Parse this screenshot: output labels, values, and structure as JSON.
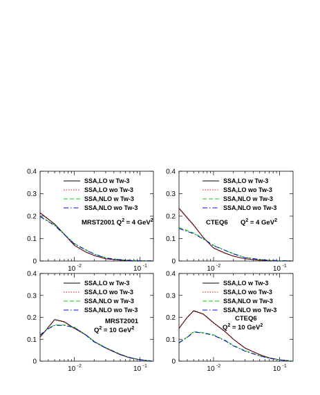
{
  "chart_data": [
    {
      "type": "line",
      "x_scale": "log",
      "xlim": [
        0.003,
        0.16
      ],
      "ylim": [
        0,
        0.4
      ],
      "xticks": [
        {
          "value": 0.01,
          "label": "10"
        },
        {
          "value": 0.1,
          "label": "10"
        }
      ],
      "xtick_exponent": "-2",
      "xtick_exponents": [
        "-2",
        "-1"
      ],
      "yticks": [
        {
          "value": 0,
          "label": "0"
        },
        {
          "value": 0.1,
          "label": "0.1"
        },
        {
          "value": 0.2,
          "label": "0.2"
        },
        {
          "value": 0.3,
          "label": "0.3"
        },
        {
          "value": 0.4,
          "label": "0.4"
        }
      ],
      "annotation": {
        "text": "MRST2001 Q",
        "sup": "2",
        "rest": " = 4 GeV",
        "sup2": "2"
      },
      "legend_position": "top-right",
      "series": [
        {
          "name": "SSA,LO w Tw-3",
          "color": "#000000",
          "dash": "solid",
          "x": [
            0.003,
            0.005,
            0.007,
            0.01,
            0.015,
            0.02,
            0.03,
            0.05,
            0.07,
            0.1,
            0.15
          ],
          "y": [
            0.215,
            0.165,
            0.12,
            0.07,
            0.04,
            0.025,
            0.01,
            0.004,
            0.002,
            0.001,
            0.0005
          ]
        },
        {
          "name": "SSA,LO wo Tw-3",
          "color": "#e00000",
          "dash": "dot",
          "x": [
            0.003,
            0.005,
            0.007,
            0.01,
            0.015,
            0.02,
            0.03,
            0.05,
            0.07,
            0.1,
            0.15
          ],
          "y": [
            0.213,
            0.163,
            0.118,
            0.069,
            0.039,
            0.024,
            0.01,
            0.004,
            0.002,
            0.001,
            0.0005
          ]
        },
        {
          "name": "SSA,NLO w Tw-3",
          "color": "#00cc00",
          "dash": "dash",
          "x": [
            0.003,
            0.005,
            0.007,
            0.01,
            0.015,
            0.02,
            0.03,
            0.05,
            0.07,
            0.1,
            0.15
          ],
          "y": [
            0.2,
            0.16,
            0.12,
            0.078,
            0.05,
            0.032,
            0.014,
            0.006,
            0.003,
            0.0015,
            0.0005
          ]
        },
        {
          "name": "SSA,NLO wo Tw-3",
          "color": "#0000dd",
          "dash": "dashdot",
          "x": [
            0.003,
            0.005,
            0.007,
            0.01,
            0.015,
            0.02,
            0.03,
            0.05,
            0.07,
            0.1,
            0.15
          ],
          "y": [
            0.198,
            0.158,
            0.118,
            0.076,
            0.049,
            0.031,
            0.013,
            0.006,
            0.003,
            0.0015,
            0.0005
          ]
        }
      ]
    },
    {
      "type": "line",
      "x_scale": "log",
      "xlim": [
        0.003,
        0.16
      ],
      "ylim": [
        0,
        0.4
      ],
      "xticks": [
        {
          "value": 0.01,
          "label": "10"
        },
        {
          "value": 0.1,
          "label": "10"
        }
      ],
      "xtick_exponents": [
        "-2",
        "-1"
      ],
      "yticks": [
        {
          "value": 0,
          "label": "0"
        },
        {
          "value": 0.1,
          "label": "0.1"
        },
        {
          "value": 0.2,
          "label": "0.2"
        },
        {
          "value": 0.3,
          "label": "0.3"
        },
        {
          "value": 0.4,
          "label": "0.4"
        }
      ],
      "annotation": {
        "text": "CTEQ6",
        "line2": "Q",
        "sup": "2",
        "rest": " = 4 GeV",
        "sup2": "2"
      },
      "legend_position": "top-right",
      "series": [
        {
          "name": "SSA,LO w Tw-3",
          "color": "#000000",
          "dash": "solid",
          "x": [
            0.003,
            0.005,
            0.007,
            0.01,
            0.015,
            0.02,
            0.03,
            0.05,
            0.07,
            0.1,
            0.15
          ],
          "y": [
            0.235,
            0.16,
            0.105,
            0.058,
            0.035,
            0.022,
            0.01,
            0.004,
            0.002,
            0.001,
            0.0005
          ]
        },
        {
          "name": "SSA,LO wo Tw-3",
          "color": "#e00000",
          "dash": "dot",
          "x": [
            0.003,
            0.005,
            0.007,
            0.01,
            0.015,
            0.02,
            0.03,
            0.05,
            0.07,
            0.1,
            0.15
          ],
          "y": [
            0.233,
            0.158,
            0.104,
            0.057,
            0.034,
            0.021,
            0.01,
            0.004,
            0.002,
            0.001,
            0.0005
          ]
        },
        {
          "name": "SSA,NLO w Tw-3",
          "color": "#00cc00",
          "dash": "dash",
          "x": [
            0.003,
            0.005,
            0.007,
            0.01,
            0.015,
            0.02,
            0.03,
            0.05,
            0.07,
            0.1,
            0.15
          ],
          "y": [
            0.15,
            0.125,
            0.1,
            0.07,
            0.048,
            0.033,
            0.016,
            0.007,
            0.003,
            0.0015,
            0.0005
          ]
        },
        {
          "name": "SSA,NLO wo Tw-3",
          "color": "#0000dd",
          "dash": "dashdot",
          "x": [
            0.003,
            0.005,
            0.007,
            0.01,
            0.015,
            0.02,
            0.03,
            0.05,
            0.07,
            0.1,
            0.15
          ],
          "y": [
            0.145,
            0.122,
            0.098,
            0.068,
            0.047,
            0.032,
            0.015,
            0.007,
            0.003,
            0.0015,
            0.0005
          ]
        }
      ]
    },
    {
      "type": "line",
      "x_scale": "log",
      "xlim": [
        0.003,
        0.16
      ],
      "ylim": [
        0,
        0.4
      ],
      "xticks": [
        {
          "value": 0.01,
          "label": "10"
        },
        {
          "value": 0.1,
          "label": "10"
        }
      ],
      "xtick_exponents": [
        "-2",
        "-1"
      ],
      "yticks": [
        {
          "value": 0,
          "label": "0"
        },
        {
          "value": 0.1,
          "label": "0.1"
        },
        {
          "value": 0.2,
          "label": "0.2"
        },
        {
          "value": 0.3,
          "label": "0.3"
        },
        {
          "value": 0.4,
          "label": "0.4"
        }
      ],
      "annotation": {
        "text": "MRST2001",
        "line2": "Q",
        "sup": "2",
        "rest": " = 10 GeV",
        "sup2": "2"
      },
      "legend_position": "top-right",
      "series": [
        {
          "name": "SSA,LO w Tw-3",
          "color": "#000000",
          "dash": "solid",
          "x": [
            0.003,
            0.004,
            0.005,
            0.007,
            0.01,
            0.015,
            0.02,
            0.03,
            0.05,
            0.07,
            0.1,
            0.15
          ],
          "y": [
            0.11,
            0.155,
            0.19,
            0.18,
            0.15,
            0.12,
            0.09,
            0.06,
            0.03,
            0.015,
            0.006,
            0.001
          ]
        },
        {
          "name": "SSA,LO wo Tw-3",
          "color": "#e00000",
          "dash": "dot",
          "x": [
            0.003,
            0.004,
            0.005,
            0.007,
            0.01,
            0.015,
            0.02,
            0.03,
            0.05,
            0.07,
            0.1,
            0.15
          ],
          "y": [
            0.108,
            0.153,
            0.188,
            0.178,
            0.149,
            0.119,
            0.089,
            0.059,
            0.029,
            0.015,
            0.006,
            0.001
          ]
        },
        {
          "name": "SSA,NLO w Tw-3",
          "color": "#00cc00",
          "dash": "dash",
          "x": [
            0.003,
            0.004,
            0.005,
            0.007,
            0.01,
            0.015,
            0.02,
            0.03,
            0.05,
            0.07,
            0.1,
            0.15
          ],
          "y": [
            0.12,
            0.15,
            0.165,
            0.165,
            0.155,
            0.12,
            0.09,
            0.062,
            0.032,
            0.017,
            0.007,
            0.001
          ]
        },
        {
          "name": "SSA,NLO wo Tw-3",
          "color": "#0000dd",
          "dash": "dashdot",
          "x": [
            0.003,
            0.004,
            0.005,
            0.007,
            0.01,
            0.015,
            0.02,
            0.03,
            0.05,
            0.07,
            0.1,
            0.15
          ],
          "y": [
            0.118,
            0.148,
            0.163,
            0.163,
            0.153,
            0.118,
            0.088,
            0.06,
            0.031,
            0.016,
            0.007,
            0.001
          ]
        }
      ]
    },
    {
      "type": "line",
      "x_scale": "log",
      "xlim": [
        0.003,
        0.16
      ],
      "ylim": [
        0,
        0.4
      ],
      "xticks": [
        {
          "value": 0.01,
          "label": "10"
        },
        {
          "value": 0.1,
          "label": "10"
        }
      ],
      "xtick_exponents": [
        "-2",
        "-1"
      ],
      "yticks": [
        {
          "value": 0,
          "label": "0"
        },
        {
          "value": 0.1,
          "label": "0.1"
        },
        {
          "value": 0.2,
          "label": "0.2"
        },
        {
          "value": 0.3,
          "label": "0.3"
        },
        {
          "value": 0.4,
          "label": "0.4"
        }
      ],
      "annotation": {
        "text": "CTEQ6",
        "line2": "Q",
        "sup": "2",
        "rest": " = 10 GeV",
        "sup2": "2"
      },
      "legend_position": "top-right",
      "series": [
        {
          "name": "SSA,LO w Tw-3",
          "color": "#000000",
          "dash": "solid",
          "x": [
            0.003,
            0.004,
            0.005,
            0.007,
            0.01,
            0.015,
            0.02,
            0.03,
            0.05,
            0.07,
            0.1,
            0.15
          ],
          "y": [
            0.15,
            0.2,
            0.23,
            0.215,
            0.175,
            0.135,
            0.1,
            0.06,
            0.03,
            0.015,
            0.006,
            0.001
          ]
        },
        {
          "name": "SSA,LO wo Tw-3",
          "color": "#e00000",
          "dash": "dot",
          "x": [
            0.003,
            0.004,
            0.005,
            0.007,
            0.01,
            0.015,
            0.02,
            0.03,
            0.05,
            0.07,
            0.1,
            0.15
          ],
          "y": [
            0.148,
            0.198,
            0.228,
            0.213,
            0.173,
            0.133,
            0.099,
            0.059,
            0.029,
            0.015,
            0.006,
            0.001
          ]
        },
        {
          "name": "SSA,NLO w Tw-3",
          "color": "#00cc00",
          "dash": "dash",
          "x": [
            0.003,
            0.004,
            0.005,
            0.007,
            0.01,
            0.015,
            0.02,
            0.03,
            0.05,
            0.07,
            0.1,
            0.15
          ],
          "y": [
            0.085,
            0.11,
            0.135,
            0.13,
            0.12,
            0.095,
            0.072,
            0.048,
            0.025,
            0.014,
            0.006,
            0.001
          ]
        },
        {
          "name": "SSA,NLO wo Tw-3",
          "color": "#0000dd",
          "dash": "dashdot",
          "x": [
            0.003,
            0.004,
            0.005,
            0.007,
            0.01,
            0.015,
            0.02,
            0.03,
            0.05,
            0.07,
            0.1,
            0.15
          ],
          "y": [
            0.083,
            0.108,
            0.133,
            0.128,
            0.118,
            0.093,
            0.07,
            0.046,
            0.024,
            0.013,
            0.006,
            0.001
          ]
        }
      ]
    }
  ]
}
